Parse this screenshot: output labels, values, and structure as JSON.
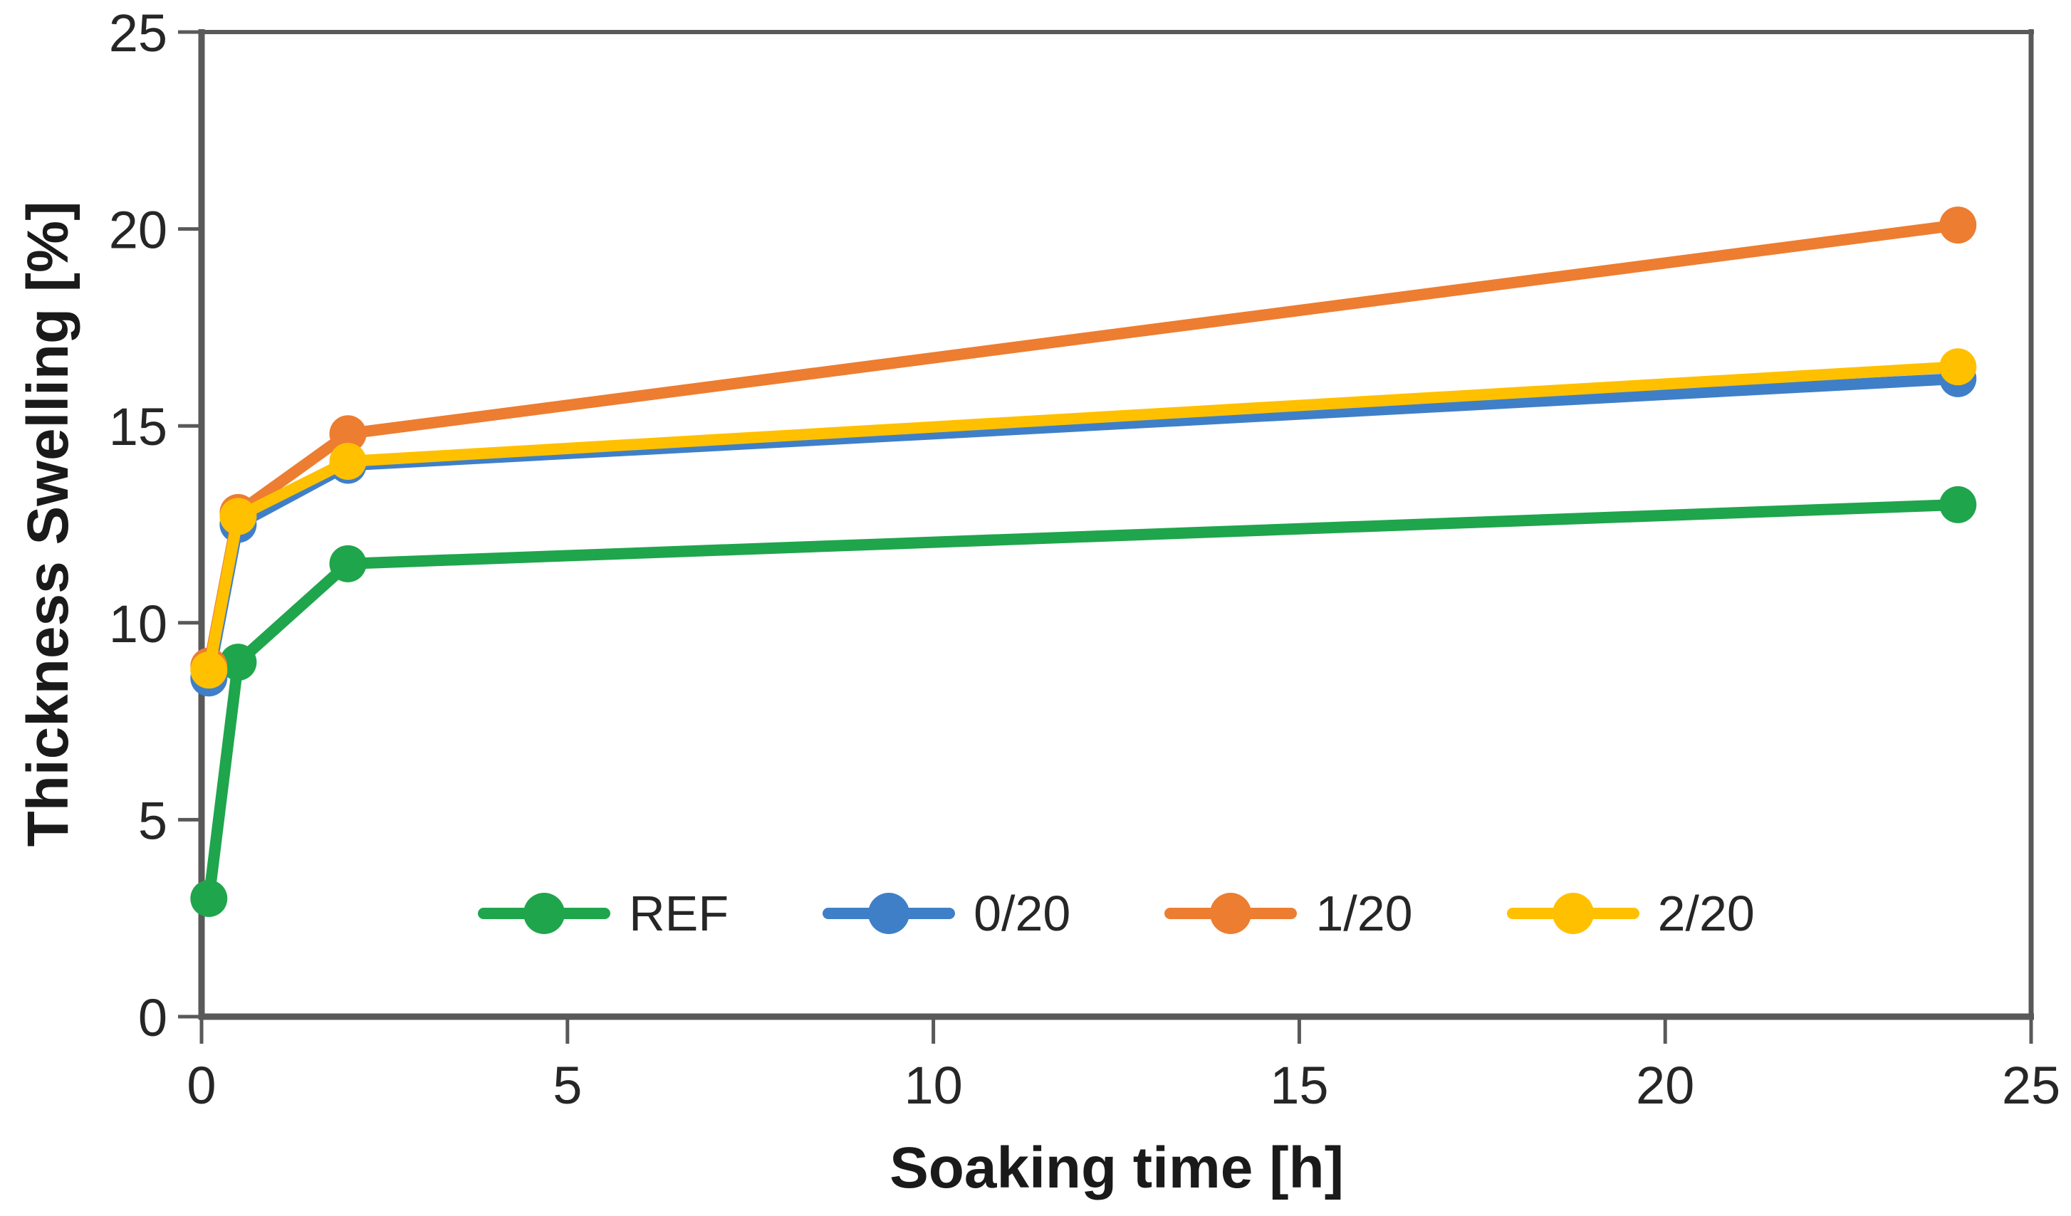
{
  "chart_data": {
    "type": "line",
    "title": "",
    "xlabel": "Soaking time [h]",
    "ylabel": "Thickness Swelling [%]",
    "xlim": [
      0,
      25
    ],
    "ylim": [
      0,
      25
    ],
    "x_ticks": [
      0,
      5,
      10,
      15,
      20,
      25
    ],
    "y_ticks": [
      0,
      5,
      10,
      15,
      20,
      25
    ],
    "grid": false,
    "legend_position": "inside-bottom-center",
    "x": [
      0.1,
      0.5,
      2,
      24
    ],
    "series": [
      {
        "name": "REF",
        "color": "#1fa54c",
        "values": [
          3.0,
          9.0,
          11.5,
          13.0
        ]
      },
      {
        "name": "0/20",
        "color": "#3f7fc8",
        "values": [
          8.6,
          12.5,
          14.0,
          16.2
        ]
      },
      {
        "name": "1/20",
        "color": "#ed7d31",
        "values": [
          8.9,
          12.8,
          14.8,
          20.1
        ]
      },
      {
        "name": "2/20",
        "color": "#ffc000",
        "values": [
          8.8,
          12.7,
          14.1,
          16.5
        ]
      }
    ],
    "axis_color": "#595959",
    "text_color": "#262626"
  }
}
